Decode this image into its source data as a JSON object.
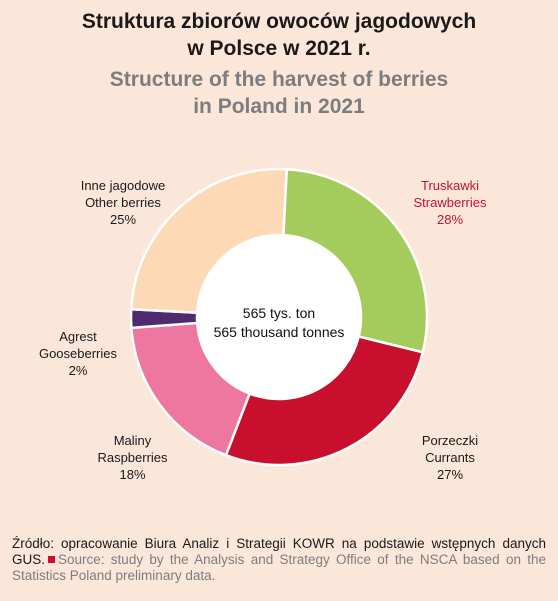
{
  "title_pl_line1": "Struktura zbiorów owoców jagodowych",
  "title_pl_line2": "w Polsce w 2021 r.",
  "title_en_line1": "Structure of the harvest of berries",
  "title_en_line2": "in Poland in 2021",
  "center_pl": "565 tys. ton",
  "center_en": "565 thousand tonnes",
  "footer_pl": "Źródło: opracowanie Biura Analiz i Strategii KOWR na podstawie wstępnych danych GUS.",
  "footer_en": "Source: study by the Analysis and Strategy Office of the NSCA based on the Statistics Poland preliminary data.",
  "chart_data": {
    "type": "pie",
    "donut": true,
    "slices": [
      {
        "label_pl": "Truskawki",
        "label_en": "Strawberries",
        "value": 28,
        "value_label": "28%",
        "color": "#a4cc5c"
      },
      {
        "label_pl": "Porzeczki",
        "label_en": "Currants",
        "value": 27,
        "value_label": "27%",
        "color": "#c8102e"
      },
      {
        "label_pl": "Maliny",
        "label_en": "Raspberries",
        "value": 18,
        "value_label": "18%",
        "color": "#ee77a0"
      },
      {
        "label_pl": "Agrest",
        "label_en": "Gooseberries",
        "value": 2,
        "value_label": "2%",
        "color": "#4f2a6e"
      },
      {
        "label_pl": "Inne jagodowe",
        "label_en": "Other berries",
        "value": 25,
        "value_label": "25%",
        "color": "#fdd9b5"
      }
    ]
  }
}
